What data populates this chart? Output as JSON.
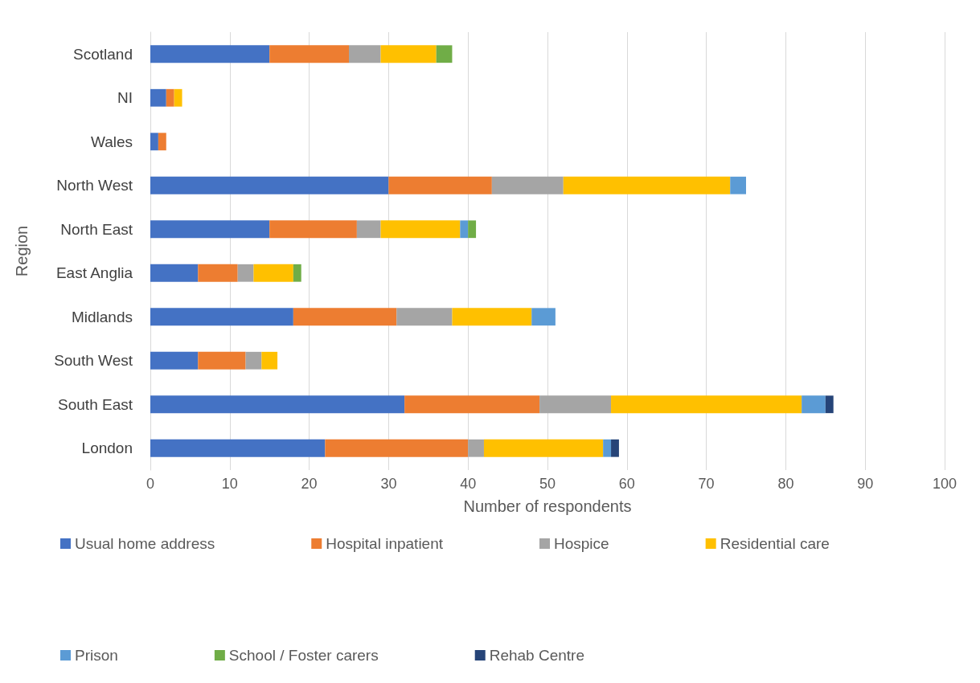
{
  "chart_data": {
    "type": "bar",
    "orientation": "horizontal",
    "stacked": true,
    "xlabel": "Number of respondents",
    "ylabel": "Region",
    "categories": [
      "Scotland",
      "NI",
      "Wales",
      "North West",
      "North East",
      "East Anglia",
      "Midlands",
      "South West",
      "South East",
      "London"
    ],
    "series": [
      {
        "name": "Usual home address",
        "color": "#4472c4",
        "values": [
          15,
          2,
          1,
          30,
          15,
          6,
          18,
          6,
          32,
          22
        ]
      },
      {
        "name": "Hospital inpatient",
        "color": "#ed7d31",
        "values": [
          10,
          1,
          1,
          13,
          11,
          5,
          13,
          6,
          17,
          18
        ]
      },
      {
        "name": "Hospice",
        "color": "#a5a5a5",
        "values": [
          4,
          null,
          null,
          9,
          3,
          2,
          7,
          2,
          9,
          2
        ]
      },
      {
        "name": "Residential care",
        "color": "#ffc000",
        "values": [
          7,
          1,
          null,
          21,
          10,
          5,
          10,
          2,
          24,
          15
        ]
      },
      {
        "name": "Prison",
        "color": "#5b9bd5",
        "values": [
          null,
          null,
          null,
          2,
          1,
          null,
          3,
          null,
          3,
          1
        ]
      },
      {
        "name": "School / Foster carers",
        "color": "#70ad47",
        "values": [
          2,
          null,
          null,
          null,
          1,
          1,
          null,
          null,
          null,
          null
        ]
      },
      {
        "name": "Rehab Centre",
        "color": "#264478",
        "values": [
          null,
          null,
          null,
          null,
          null,
          null,
          null,
          null,
          1,
          1
        ]
      }
    ],
    "xlim": [
      0,
      100
    ],
    "xticks": [
      0,
      10,
      20,
      30,
      40,
      50,
      60,
      70,
      80,
      90,
      100
    ],
    "grid": "x",
    "legend": "bottom"
  }
}
